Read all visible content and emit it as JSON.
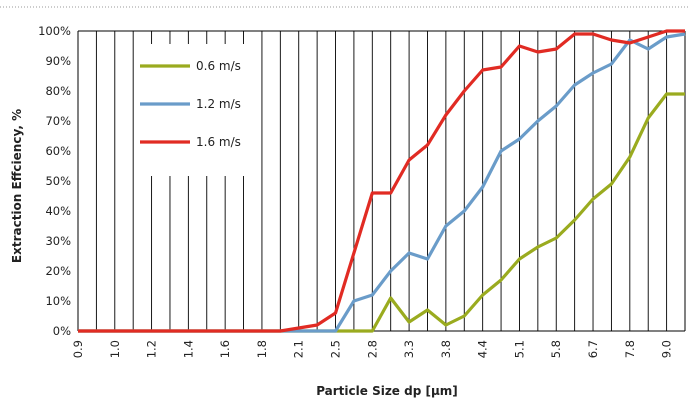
{
  "chart_data": {
    "type": "line",
    "xlabel": "Particle Size dp [µm]",
    "ylabel": "Extraction Effciency, %",
    "ylim": [
      0,
      100
    ],
    "y_ticks": [
      "0%",
      "10%",
      "20%",
      "30%",
      "40%",
      "50%",
      "60%",
      "70%",
      "80%",
      "90%",
      "100%"
    ],
    "x": [
      "0.9",
      "",
      "1.0",
      "",
      "1.2",
      "",
      "1.4",
      "",
      "1.6",
      "",
      "1.8",
      "",
      "2.1",
      "",
      "2.5",
      "",
      "2.8",
      "",
      "3.3",
      "",
      "3.8",
      "",
      "4.4",
      "",
      "5.1",
      "",
      "5.8",
      "",
      "6.7",
      "",
      "7.8",
      "",
      "9.0",
      ""
    ],
    "grid": "vertical",
    "legend_position": "left-inside",
    "series": [
      {
        "name": "0.6 m/s",
        "color": "#9aab1f",
        "values": [
          0,
          0,
          0,
          0,
          0,
          0,
          0,
          0,
          0,
          0,
          0,
          0,
          0,
          0,
          0,
          0,
          0,
          11,
          3,
          7,
          2,
          5,
          12,
          17,
          24,
          28,
          31,
          37,
          44,
          49,
          58,
          71,
          79,
          79
        ]
      },
      {
        "name": "1.2 m/s",
        "color": "#6a9cc9",
        "values": [
          0,
          0,
          0,
          0,
          0,
          0,
          0,
          0,
          0,
          0,
          0,
          0,
          0,
          0,
          0,
          10,
          12,
          20,
          26,
          24,
          35,
          40,
          48,
          60,
          64,
          70,
          75,
          82,
          86,
          89,
          97,
          94,
          98,
          99
        ]
      },
      {
        "name": "1.6 m/s",
        "color": "#e12b23",
        "values": [
          0,
          0,
          0,
          0,
          0,
          0,
          0,
          0,
          0,
          0,
          0,
          0,
          1,
          2,
          6,
          26,
          46,
          46,
          57,
          62,
          72,
          80,
          87,
          88,
          95,
          93,
          94,
          99,
          99,
          97,
          96,
          98,
          100,
          100
        ]
      }
    ]
  }
}
